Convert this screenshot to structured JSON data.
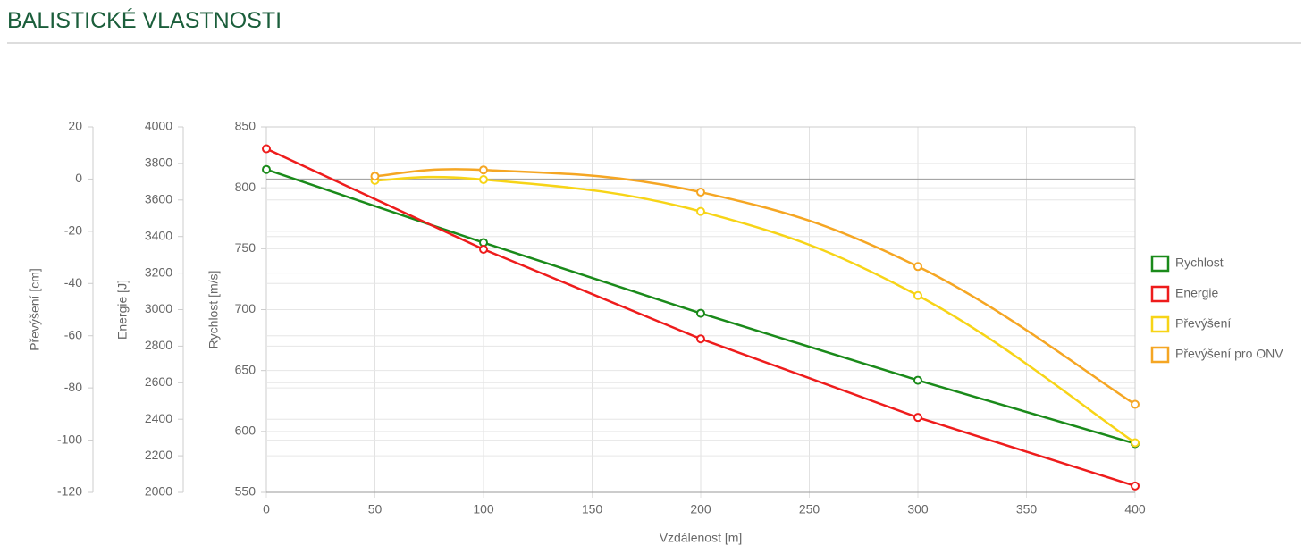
{
  "chart_data": {
    "type": "line",
    "title": "BALISTICKÉ VLASTNOSTI",
    "xlabel": "Vzdálenost [m]",
    "xlim": [
      0,
      400
    ],
    "xticks": [
      0,
      50,
      100,
      150,
      200,
      250,
      300,
      350,
      400
    ],
    "ylabel": "Rychlost [m/s]",
    "ylim": [
      550,
      850
    ],
    "yticks": [
      550,
      600,
      650,
      700,
      750,
      800,
      850
    ],
    "y2label": "Energie [J]",
    "y2lim": [
      2000,
      4000
    ],
    "y2ticks": [
      2000,
      2200,
      2400,
      2600,
      2800,
      3000,
      3200,
      3400,
      3600,
      3800,
      4000
    ],
    "y3label": "Převýšení [cm]",
    "y3lim": [
      -120,
      20
    ],
    "y3ticks": [
      -120,
      -100,
      -80,
      -60,
      -40,
      -20,
      0,
      20
    ],
    "grid": true,
    "legend": "right",
    "series": [
      {
        "name": "Rychlost",
        "color": "#1a8a1a",
        "axis": "y",
        "smooth": false,
        "x": [
          0,
          100,
          200,
          300,
          400
        ],
        "values": [
          815,
          755,
          697,
          642,
          590
        ]
      },
      {
        "name": "Energie",
        "color": "#ee1c1c",
        "axis": "y2",
        "smooth": false,
        "x": [
          0,
          100,
          200,
          300,
          400
        ],
        "values": [
          3880,
          3330,
          2840,
          2410,
          2035
        ]
      },
      {
        "name": "Převýšení",
        "color": "#f7d417",
        "axis": "y3",
        "smooth": true,
        "x": [
          50,
          100,
          200,
          300,
          400
        ],
        "values": [
          -0.5,
          -0.2,
          -12.4,
          -44.6,
          -101
        ]
      },
      {
        "name": "Převýšení pro ONV",
        "color": "#f5a623",
        "axis": "y3",
        "smooth": true,
        "x": [
          50,
          100,
          200,
          300,
          400
        ],
        "values": [
          1.1,
          3.5,
          -5,
          -33.5,
          -86.3
        ]
      }
    ]
  }
}
